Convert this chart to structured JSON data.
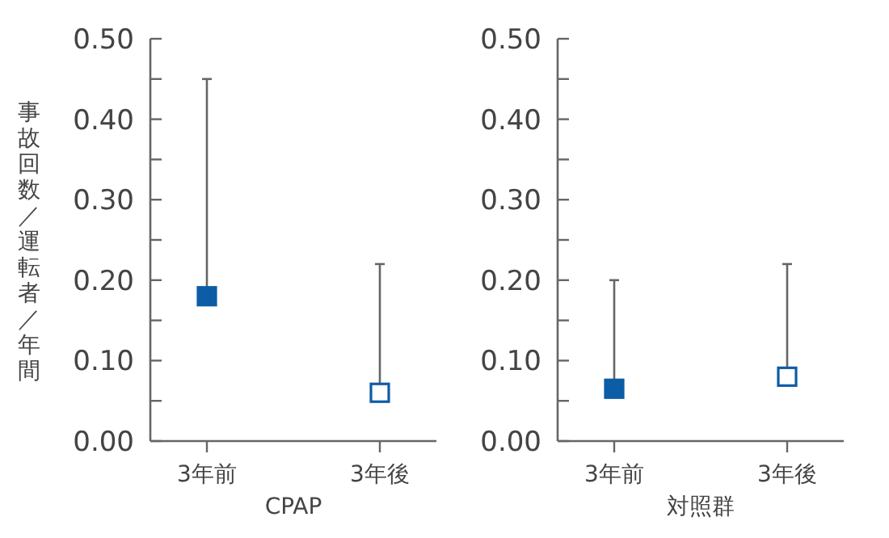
{
  "chart_data": [
    {
      "type": "scatter",
      "categories": [
        "3年前",
        "3年後"
      ],
      "xlabel": "CPAP",
      "ylabel": "事故回数／運転者／年間",
      "ylim": [
        0,
        0.5
      ],
      "yticks": [
        {
          "value": 0,
          "label": "0.00"
        },
        {
          "value": 0.05,
          "label": null
        },
        {
          "value": 0.1,
          "label": "0.10"
        },
        {
          "value": 0.15,
          "label": null
        },
        {
          "value": 0.2,
          "label": "0.20"
        },
        {
          "value": 0.25,
          "label": null
        },
        {
          "value": 0.3,
          "label": "0.30"
        },
        {
          "value": 0.35,
          "label": null
        },
        {
          "value": 0.4,
          "label": "0.40"
        },
        {
          "value": 0.45,
          "label": null
        },
        {
          "value": 0.5,
          "label": "0.50"
        }
      ],
      "marker": "square",
      "series": [
        {
          "color": "#0d5ca6",
          "colors": [
            "#0d5ca6",
            "#ffffff"
          ],
          "values": [
            0.18,
            0.06
          ],
          "errors": [
            [
              0.18,
              0.45
            ],
            [
              0.06,
              0.22
            ]
          ]
        }
      ]
    },
    {
      "type": "scatter",
      "categories": [
        "3年前",
        "3年後"
      ],
      "xlabel": "対照群",
      "ylim": [
        0,
        0.5
      ],
      "yticks": [
        {
          "value": 0,
          "label": "0.00"
        },
        {
          "value": 0.05,
          "label": null
        },
        {
          "value": 0.1,
          "label": "0.10"
        },
        {
          "value": 0.15,
          "label": null
        },
        {
          "value": 0.2,
          "label": "0.20"
        },
        {
          "value": 0.25,
          "label": null
        },
        {
          "value": 0.3,
          "label": "0.30"
        },
        {
          "value": 0.35,
          "label": null
        },
        {
          "value": 0.4,
          "label": "0.40"
        },
        {
          "value": 0.45,
          "label": null
        },
        {
          "value": 0.5,
          "label": "0.50"
        }
      ],
      "marker": "square",
      "series": [
        {
          "color": "#0d5ca6",
          "colors": [
            "#0d5ca6",
            "#ffffff"
          ],
          "values": [
            0.065,
            0.08
          ],
          "errors": [
            [
              0.065,
              0.2
            ],
            [
              0.08,
              0.22
            ]
          ]
        }
      ]
    }
  ]
}
